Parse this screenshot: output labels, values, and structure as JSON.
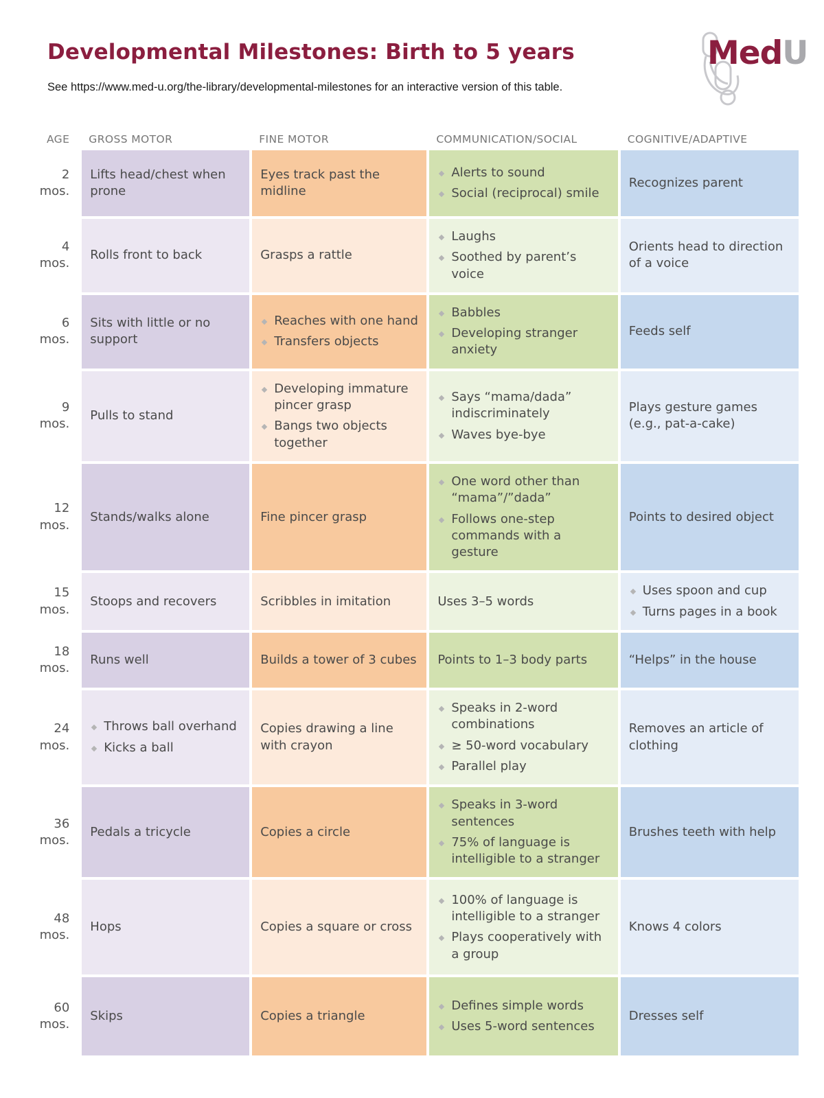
{
  "header": {
    "title": "Developmental Milestones: Birth to 5 years",
    "subtitle": "See https://www.med-u.org/the-library/developmental-milestones for an interactive version of this table."
  },
  "logo": {
    "text_main": "Med",
    "text_accent": "U"
  },
  "colors": {
    "title": "#8b1e3f",
    "gross_dark": "#d8d0e4",
    "gross_light": "#ece7f2",
    "fine_dark": "#f8c99e",
    "fine_light": "#fdeadb",
    "comm_dark": "#d2e1b0",
    "comm_light": "#ecf3e0",
    "cog_dark": "#c5d8ee",
    "cog_light": "#e4ecf7",
    "bullet": "#b5b5b5"
  },
  "table": {
    "headers": {
      "age": "AGE",
      "gross": "GROSS MOTOR",
      "fine": "FINE MOTOR",
      "comm": "COMMUNICATION/SOCIAL",
      "cog": "COGNITIVE/ADAPTIVE"
    },
    "rows": [
      {
        "age_num": "2",
        "age_unit": "mos.",
        "gross": [
          "Lifts head/chest when prone"
        ],
        "fine": [
          "Eyes track past the midline"
        ],
        "comm": [
          "Alerts to sound",
          "Social (reciprocal) smile"
        ],
        "cog": [
          "Recognizes parent"
        ]
      },
      {
        "age_num": "4",
        "age_unit": "mos.",
        "gross": [
          "Rolls front to back"
        ],
        "fine": [
          "Grasps a rattle"
        ],
        "comm": [
          "Laughs",
          "Soothed by parent’s voice"
        ],
        "cog": [
          "Orients head to direction of a voice"
        ]
      },
      {
        "age_num": "6",
        "age_unit": "mos.",
        "gross": [
          "Sits with little or no support"
        ],
        "fine": [
          "Reaches with one hand",
          "Transfers objects"
        ],
        "comm": [
          "Babbles",
          "Developing stranger anxiety"
        ],
        "cog": [
          "Feeds self"
        ]
      },
      {
        "age_num": "9",
        "age_unit": "mos.",
        "gross": [
          "Pulls to stand"
        ],
        "fine": [
          "Developing immature pincer grasp",
          "Bangs two objects together"
        ],
        "comm": [
          "Says “mama/dada” indiscriminately",
          "Waves bye-bye"
        ],
        "cog": [
          "Plays gesture games (e.g., pat-a-cake)"
        ]
      },
      {
        "age_num": "12",
        "age_unit": "mos.",
        "gross": [
          "Stands/walks alone"
        ],
        "fine": [
          "Fine pincer grasp"
        ],
        "comm": [
          "One word other than “mama”/”dada”",
          "Follows one-step commands with a gesture"
        ],
        "cog": [
          "Points to desired object"
        ]
      },
      {
        "age_num": "15",
        "age_unit": "mos.",
        "gross": [
          "Stoops and recovers"
        ],
        "fine": [
          "Scribbles in imitation"
        ],
        "comm": [
          "Uses 3–5 words"
        ],
        "cog": [
          "Uses spoon and cup",
          "Turns pages in a book"
        ]
      },
      {
        "age_num": "18",
        "age_unit": "mos.",
        "gross": [
          "Runs well"
        ],
        "fine": [
          "Builds a tower of 3 cubes"
        ],
        "comm": [
          "Points to 1–3 body parts"
        ],
        "cog": [
          "“Helps” in the house"
        ]
      },
      {
        "age_num": "24",
        "age_unit": "mos.",
        "gross": [
          "Throws ball overhand",
          "Kicks a ball"
        ],
        "fine": [
          "Copies drawing a line with crayon"
        ],
        "comm": [
          "Speaks in 2-word combinations",
          "≥ 50-word vocabulary",
          "Parallel play"
        ],
        "cog": [
          "Removes an article of clothing"
        ]
      },
      {
        "age_num": "36",
        "age_unit": "mos.",
        "gross": [
          "Pedals a tricycle"
        ],
        "fine": [
          "Copies a circle"
        ],
        "comm": [
          "Speaks in 3-word sentences",
          "75% of language is intelligible to a stranger"
        ],
        "cog": [
          "Brushes teeth with help"
        ]
      },
      {
        "age_num": "48",
        "age_unit": "mos.",
        "gross": [
          "Hops"
        ],
        "fine": [
          "Copies a square or cross"
        ],
        "comm": [
          "100% of language is intelligible to a stranger",
          "Plays cooperatively with a group"
        ],
        "cog": [
          "Knows 4 colors"
        ]
      },
      {
        "age_num": "60",
        "age_unit": "mos.",
        "gross": [
          "Skips"
        ],
        "fine": [
          "Copies a triangle"
        ],
        "comm": [
          "Defines simple words",
          "Uses 5-word sentences"
        ],
        "cog": [
          "Dresses self"
        ]
      }
    ]
  }
}
